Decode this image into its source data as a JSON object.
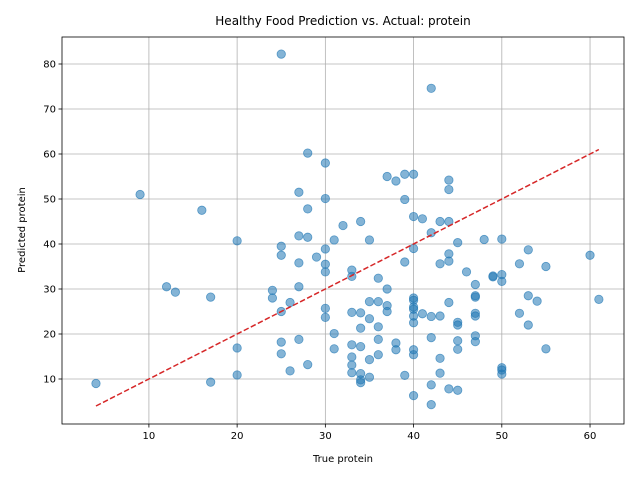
{
  "chart_data": {
    "type": "scatter",
    "title": "Healthy Food Prediction vs. Actual: protein",
    "xlabel": "True protein",
    "ylabel": "Predicted protein",
    "xlim": [
      0.15,
      63.85
    ],
    "ylim": [
      0.0,
      86.0
    ],
    "xticks": [
      10,
      20,
      30,
      40,
      50,
      60
    ],
    "yticks": [
      10,
      20,
      30,
      40,
      50,
      60,
      70,
      80
    ],
    "grid": true,
    "point_color": "#1f77b4",
    "reference_line": {
      "x": [
        4,
        61
      ],
      "y": [
        4,
        61
      ],
      "color": "#d62728",
      "style": "dashed"
    },
    "points": [
      [
        4,
        9
      ],
      [
        9,
        51
      ],
      [
        12,
        30.5
      ],
      [
        13,
        29.3
      ],
      [
        16,
        47.5
      ],
      [
        17,
        28.2
      ],
      [
        17,
        9.3
      ],
      [
        20,
        40.7
      ],
      [
        20,
        16.9
      ],
      [
        20,
        10.9
      ],
      [
        24,
        29.7
      ],
      [
        24,
        28
      ],
      [
        25,
        82.2
      ],
      [
        25,
        39.5
      ],
      [
        25,
        37.5
      ],
      [
        25,
        25
      ],
      [
        25,
        18.2
      ],
      [
        25,
        15.6
      ],
      [
        26,
        27
      ],
      [
        26,
        11.8
      ],
      [
        27,
        51.5
      ],
      [
        27,
        41.8
      ],
      [
        27,
        35.8
      ],
      [
        27,
        30.5
      ],
      [
        27,
        18.8
      ],
      [
        28,
        60.2
      ],
      [
        28,
        47.8
      ],
      [
        28,
        41.5
      ],
      [
        28,
        13.2
      ],
      [
        29,
        37.1
      ],
      [
        30,
        58
      ],
      [
        30,
        50.1
      ],
      [
        30,
        38.9
      ],
      [
        30,
        35.5
      ],
      [
        30,
        33.8
      ],
      [
        30,
        25.7
      ],
      [
        30,
        23.7
      ],
      [
        31,
        40.9
      ],
      [
        31,
        20.1
      ],
      [
        31,
        16.7
      ],
      [
        32,
        44.1
      ],
      [
        33,
        34.2
      ],
      [
        33,
        32.8
      ],
      [
        33,
        24.8
      ],
      [
        33,
        17.6
      ],
      [
        33,
        14.9
      ],
      [
        33,
        13.1
      ],
      [
        33,
        11.4
      ],
      [
        34,
        45
      ],
      [
        34,
        24.7
      ],
      [
        34,
        21.3
      ],
      [
        34,
        17.2
      ],
      [
        34,
        11.2
      ],
      [
        34,
        9.8
      ],
      [
        34,
        9.2
      ],
      [
        35,
        40.9
      ],
      [
        35,
        27.2
      ],
      [
        35,
        23.4
      ],
      [
        35,
        14.3
      ],
      [
        35,
        10.4
      ],
      [
        36,
        32.4
      ],
      [
        36,
        27.2
      ],
      [
        36,
        21.6
      ],
      [
        36,
        18.8
      ],
      [
        36,
        15.4
      ],
      [
        37,
        55
      ],
      [
        37,
        30
      ],
      [
        37,
        26.3
      ],
      [
        37,
        25
      ],
      [
        38,
        54
      ],
      [
        38,
        18
      ],
      [
        38,
        16.5
      ],
      [
        39,
        55.5
      ],
      [
        39,
        49.9
      ],
      [
        39,
        36
      ],
      [
        39,
        10.8
      ],
      [
        40,
        55.5
      ],
      [
        40,
        46.1
      ],
      [
        40,
        39
      ],
      [
        40,
        28
      ],
      [
        40,
        27.5
      ],
      [
        40,
        26
      ],
      [
        40,
        25.5
      ],
      [
        40,
        24
      ],
      [
        40,
        22.5
      ],
      [
        40,
        16.5
      ],
      [
        40,
        15.4
      ],
      [
        40,
        6.3
      ],
      [
        41,
        45.6
      ],
      [
        41,
        24.5
      ],
      [
        42,
        74.6
      ],
      [
        42,
        42.5
      ],
      [
        42,
        23.9
      ],
      [
        42,
        19.2
      ],
      [
        42,
        8.7
      ],
      [
        42,
        4.3
      ],
      [
        43,
        45
      ],
      [
        43,
        35.6
      ],
      [
        43,
        24
      ],
      [
        43,
        14.6
      ],
      [
        43,
        11.3
      ],
      [
        44,
        54.2
      ],
      [
        44,
        52.1
      ],
      [
        44,
        45
      ],
      [
        44,
        37.8
      ],
      [
        44,
        36.2
      ],
      [
        44,
        27
      ],
      [
        44,
        7.8
      ],
      [
        45,
        40.3
      ],
      [
        45,
        22.6
      ],
      [
        45,
        22
      ],
      [
        45,
        18.5
      ],
      [
        45,
        16.6
      ],
      [
        45,
        7.5
      ],
      [
        46,
        33.8
      ],
      [
        47,
        31
      ],
      [
        47,
        28.5
      ],
      [
        47,
        28.2
      ],
      [
        47,
        24.6
      ],
      [
        47,
        24
      ],
      [
        47,
        19.6
      ],
      [
        47,
        18.3
      ],
      [
        48,
        41
      ],
      [
        49,
        32.9
      ],
      [
        49,
        32.7
      ],
      [
        50,
        41.1
      ],
      [
        50,
        33.2
      ],
      [
        50,
        31.7
      ],
      [
        50,
        12.5
      ],
      [
        50,
        12
      ],
      [
        50,
        11.1
      ],
      [
        52,
        35.6
      ],
      [
        52,
        24.6
      ],
      [
        53,
        38.7
      ],
      [
        53,
        28.5
      ],
      [
        53,
        22
      ],
      [
        54,
        27.3
      ],
      [
        55,
        35
      ],
      [
        55,
        16.7
      ],
      [
        60,
        37.5
      ],
      [
        61,
        27.7
      ]
    ]
  }
}
